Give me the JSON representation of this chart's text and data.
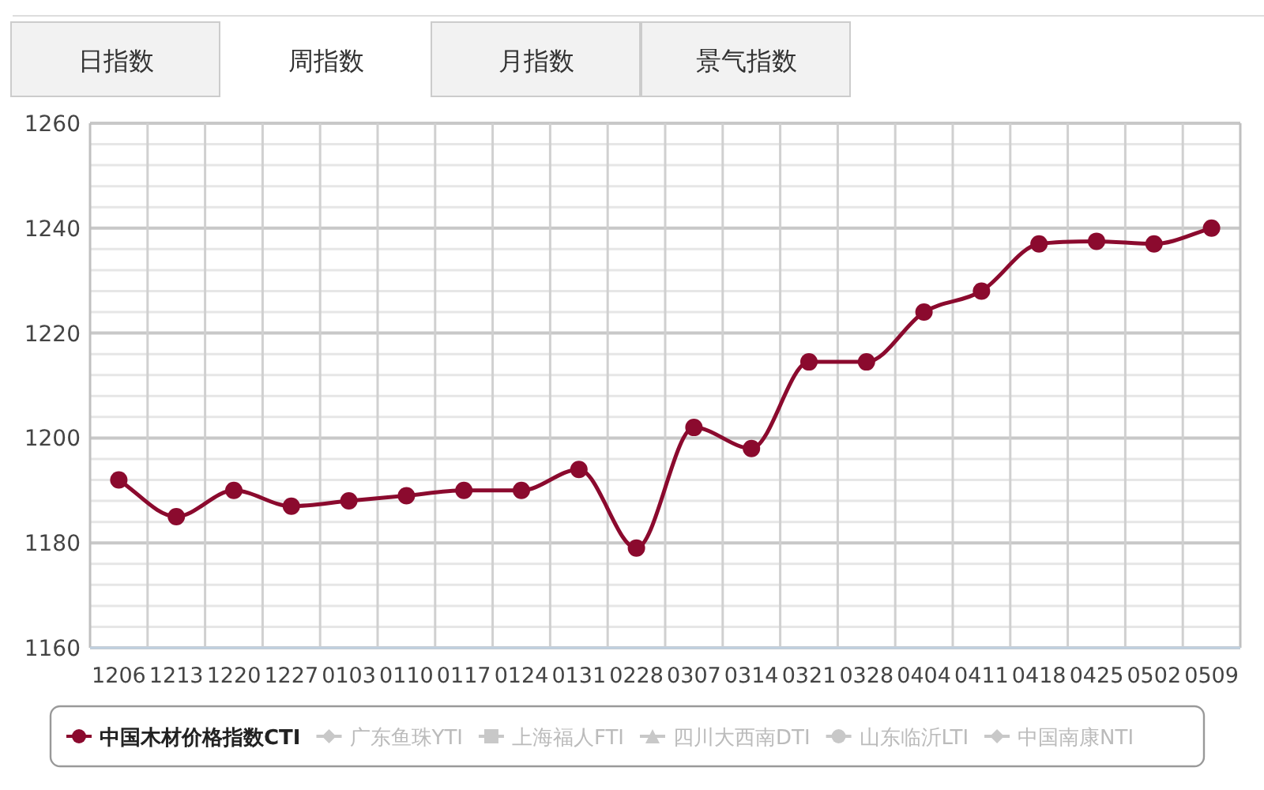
{
  "chart_data": {
    "type": "line",
    "annotations": [
      "日指数",
      "周指数",
      "月指数",
      "景气指数"
    ],
    "categories": [
      "1206",
      "1213",
      "1220",
      "1227",
      "0103",
      "0110",
      "0117",
      "0124",
      "0131",
      "0228",
      "0307",
      "0314",
      "0321",
      "0328",
      "0404",
      "0411",
      "0418",
      "0425",
      "0502",
      "0509"
    ],
    "series": [
      {
        "name": "中国木材价格指数CTI",
        "color": "#8b0a2e",
        "marker": "circle",
        "values": [
          1192,
          1185,
          1190,
          1187,
          1188,
          1189,
          1190,
          1190,
          1194,
          1179,
          1202,
          1198,
          1214.5,
          1214.5,
          1224,
          1228,
          1237,
          1237.5,
          1237,
          1240
        ]
      },
      {
        "name": "广东鱼珠YTI",
        "color": "#c8c8c8",
        "marker": "diamond",
        "values": [
          null,
          null,
          null,
          null,
          null,
          null,
          null,
          null,
          null,
          null,
          null,
          null,
          null,
          null,
          null,
          null,
          null,
          null,
          null,
          null
        ]
      },
      {
        "name": "上海福人FTI",
        "color": "#c8c8c8",
        "marker": "square",
        "values": [
          null,
          null,
          null,
          null,
          null,
          null,
          null,
          null,
          null,
          null,
          null,
          null,
          null,
          null,
          null,
          null,
          null,
          null,
          null,
          null
        ]
      },
      {
        "name": "四川大西南DTI",
        "color": "#c8c8c8",
        "marker": "triangle",
        "values": [
          null,
          null,
          null,
          null,
          null,
          null,
          null,
          null,
          null,
          null,
          null,
          null,
          null,
          null,
          null,
          null,
          null,
          null,
          null,
          null
        ]
      },
      {
        "name": "山东临沂LTI",
        "color": "#c8c8c8",
        "marker": "circle",
        "values": [
          null,
          null,
          null,
          null,
          null,
          null,
          null,
          null,
          null,
          null,
          null,
          null,
          null,
          null,
          null,
          null,
          null,
          null,
          null,
          null
        ]
      },
      {
        "name": "中国南康NTI",
        "color": "#c8c8c8",
        "marker": "diamond",
        "values": [
          null,
          null,
          null,
          null,
          null,
          null,
          null,
          null,
          null,
          null,
          null,
          null,
          null,
          null,
          null,
          null,
          null,
          null,
          null,
          null
        ]
      }
    ],
    "ylim": [
      1160,
      1260
    ],
    "yticks": [
      1160,
      1180,
      1200,
      1220,
      1240,
      1260
    ],
    "grid": true,
    "legend": "bottom"
  }
}
